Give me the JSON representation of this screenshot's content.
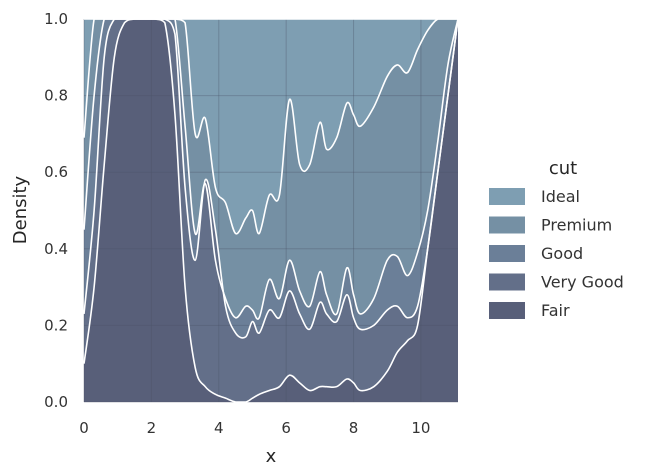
{
  "chart_data": {
    "type": "area",
    "stacked": "fill",
    "xlabel": "x",
    "ylabel": "Density",
    "xlim": [
      0,
      11.1
    ],
    "ylim": [
      0,
      1
    ],
    "xticks": [
      0,
      2,
      4,
      6,
      8,
      10
    ],
    "yticks": [
      0.0,
      0.2,
      0.4,
      0.6,
      0.8,
      1.0
    ],
    "ytick_labels": [
      "0.0",
      "0.2",
      "0.4",
      "0.6",
      "0.8",
      "1.0"
    ],
    "grid": true,
    "legend_title": "cut",
    "legend_position": "right",
    "x": [
      0,
      0.3,
      0.6,
      0.9,
      1.2,
      1.5,
      1.8,
      2.1,
      2.4,
      2.7,
      3.0,
      3.3,
      3.6,
      3.9,
      4.2,
      4.5,
      4.8,
      5.0,
      5.2,
      5.5,
      5.8,
      6.1,
      6.4,
      6.7,
      7.0,
      7.2,
      7.5,
      7.8,
      8.0,
      8.2,
      8.6,
      9.0,
      9.3,
      9.6,
      9.9,
      10.2,
      10.5,
      10.8,
      11.1
    ],
    "boundaries": [
      {
        "name": "Fair",
        "values": [
          0.1,
          0.3,
          0.62,
          0.9,
          0.99,
          1.0,
          1.0,
          1.0,
          0.99,
          0.75,
          0.3,
          0.09,
          0.04,
          0.02,
          0.01,
          0.0,
          0.0,
          0.01,
          0.02,
          0.03,
          0.04,
          0.07,
          0.05,
          0.03,
          0.04,
          0.04,
          0.04,
          0.06,
          0.05,
          0.03,
          0.04,
          0.08,
          0.13,
          0.16,
          0.2,
          0.4,
          0.6,
          0.8,
          1.0
        ]
      },
      {
        "name": "Very Good",
        "values": [
          0.23,
          0.5,
          0.9,
          1.0,
          1.0,
          1.0,
          1.0,
          1.0,
          1.0,
          0.96,
          0.56,
          0.37,
          0.58,
          0.45,
          0.25,
          0.18,
          0.17,
          0.21,
          0.18,
          0.24,
          0.22,
          0.29,
          0.23,
          0.19,
          0.26,
          0.23,
          0.21,
          0.28,
          0.22,
          0.19,
          0.2,
          0.24,
          0.25,
          0.22,
          0.25,
          0.4,
          0.6,
          0.8,
          1.0
        ]
      },
      {
        "name": "Good",
        "values": [
          0.45,
          0.8,
          1.0,
          1.0,
          1.0,
          1.0,
          1.0,
          1.0,
          1.0,
          1.0,
          0.72,
          0.44,
          0.57,
          0.37,
          0.27,
          0.22,
          0.25,
          0.24,
          0.22,
          0.32,
          0.27,
          0.37,
          0.29,
          0.25,
          0.34,
          0.28,
          0.23,
          0.35,
          0.28,
          0.23,
          0.27,
          0.37,
          0.38,
          0.33,
          0.39,
          0.5,
          0.68,
          0.88,
          1.0
        ]
      },
      {
        "name": "Premium",
        "values": [
          0.69,
          1.0,
          1.0,
          1.0,
          1.0,
          1.0,
          1.0,
          1.0,
          1.0,
          1.0,
          0.99,
          0.7,
          0.74,
          0.56,
          0.52,
          0.44,
          0.48,
          0.5,
          0.44,
          0.54,
          0.54,
          0.79,
          0.62,
          0.62,
          0.73,
          0.66,
          0.69,
          0.78,
          0.75,
          0.72,
          0.77,
          0.85,
          0.88,
          0.86,
          0.92,
          0.97,
          1.0,
          1.0,
          1.0
        ]
      },
      {
        "name": "Ideal",
        "values": [
          1.0,
          1.0,
          1.0,
          1.0,
          1.0,
          1.0,
          1.0,
          1.0,
          1.0,
          1.0,
          1.0,
          1.0,
          1.0,
          1.0,
          1.0,
          1.0,
          1.0,
          1.0,
          1.0,
          1.0,
          1.0,
          1.0,
          1.0,
          1.0,
          1.0,
          1.0,
          1.0,
          1.0,
          1.0,
          1.0,
          1.0,
          1.0,
          1.0,
          1.0,
          1.0,
          1.0,
          1.0,
          1.0,
          1.0
        ]
      }
    ],
    "series": [
      {
        "name": "Ideal",
        "color": "#7E9EB2"
      },
      {
        "name": "Premium",
        "color": "#7590A4"
      },
      {
        "name": "Good",
        "color": "#6B7F98"
      },
      {
        "name": "Very Good",
        "color": "#636F89"
      },
      {
        "name": "Fair",
        "color": "#585F79"
      }
    ]
  }
}
